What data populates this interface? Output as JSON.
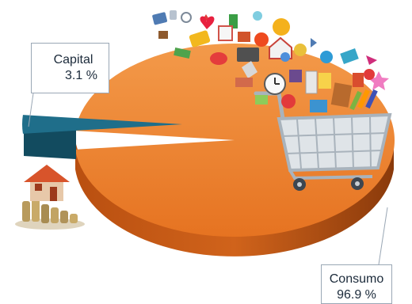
{
  "chart_data": {
    "type": "pie",
    "style": "3d-exploded",
    "slices": [
      {
        "label": "Capital",
        "value": 3.1,
        "display": "3.1 %",
        "color": "#1f6e8a"
      },
      {
        "label": "Consumo",
        "value": 96.9,
        "display": "96.9 %",
        "color": "#e8762a"
      }
    ],
    "legend": "none",
    "annotations": "callout-boxes",
    "decorations": [
      "house-with-coins-illustration",
      "shopping-cart-with-goods-illustration"
    ]
  }
}
